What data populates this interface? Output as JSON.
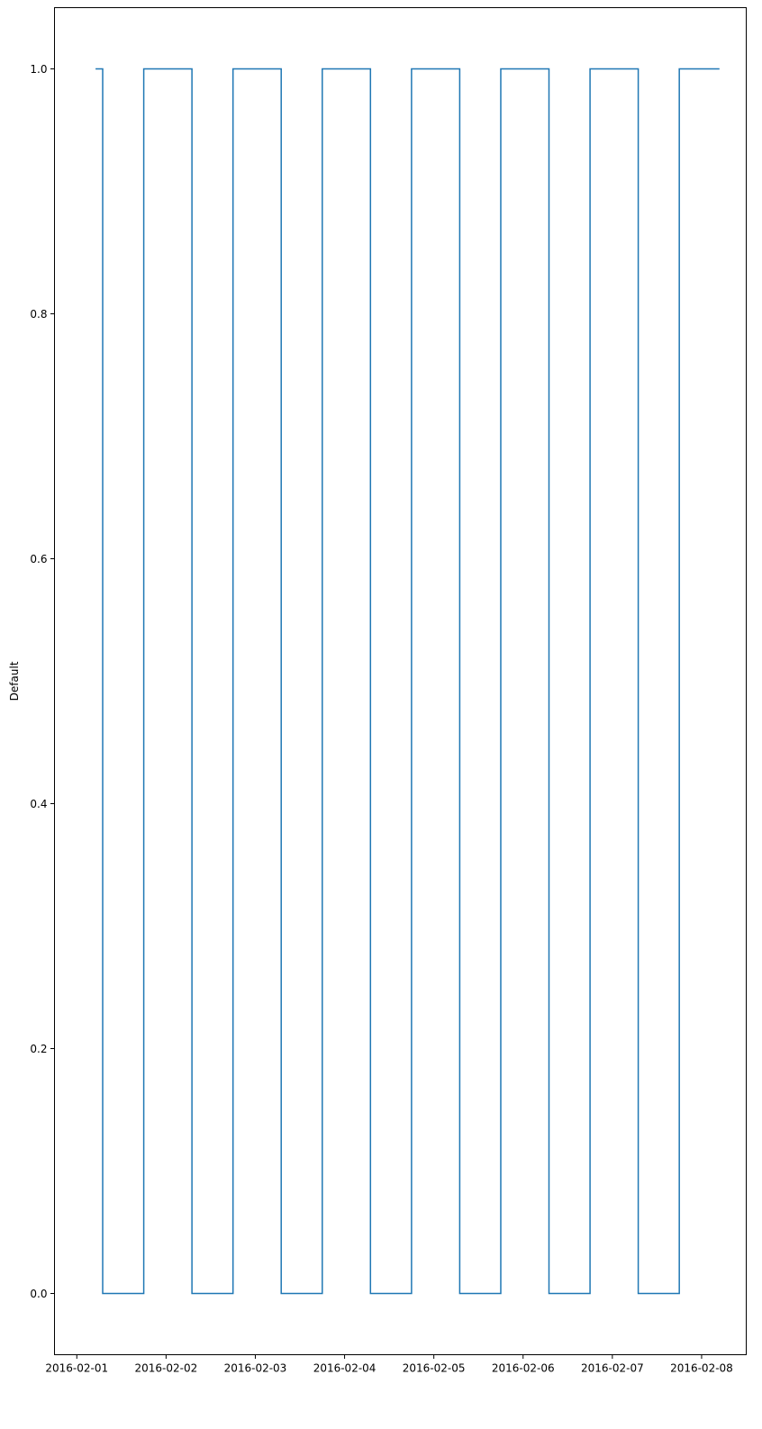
{
  "chart_data": {
    "type": "line",
    "drawstyle": "steps-post",
    "title": "",
    "xlabel": "",
    "ylabel": "Default",
    "x_unit": "days since 2016-02-01 00:00",
    "xlim": [
      -0.25,
      7.5
    ],
    "ylim": [
      -0.05,
      1.05
    ],
    "x_ticks": [
      0,
      1,
      2,
      3,
      4,
      5,
      6,
      7
    ],
    "x_tick_labels": [
      "2016-02-01",
      "2016-02-02",
      "2016-02-03",
      "2016-02-04",
      "2016-02-05",
      "2016-02-06",
      "2016-02-07",
      "2016-02-08"
    ],
    "y_ticks": [
      0.0,
      0.2,
      0.4,
      0.6,
      0.8,
      1.0
    ],
    "y_tick_labels": [
      "0.0",
      "0.2",
      "0.4",
      "0.6",
      "0.8",
      "1.0"
    ],
    "grid": false,
    "legend": false,
    "series": [
      {
        "name": "Default",
        "color": "#1f77b4",
        "x": [
          0.21,
          0.29,
          0.75,
          1.29,
          1.75,
          2.29,
          2.75,
          3.29,
          3.75,
          4.29,
          4.75,
          5.29,
          5.75,
          6.29,
          6.75,
          7.2
        ],
        "values": [
          1,
          0,
          1,
          0,
          1,
          0,
          1,
          0,
          1,
          0,
          1,
          0,
          1,
          0,
          1,
          1
        ]
      }
    ]
  }
}
